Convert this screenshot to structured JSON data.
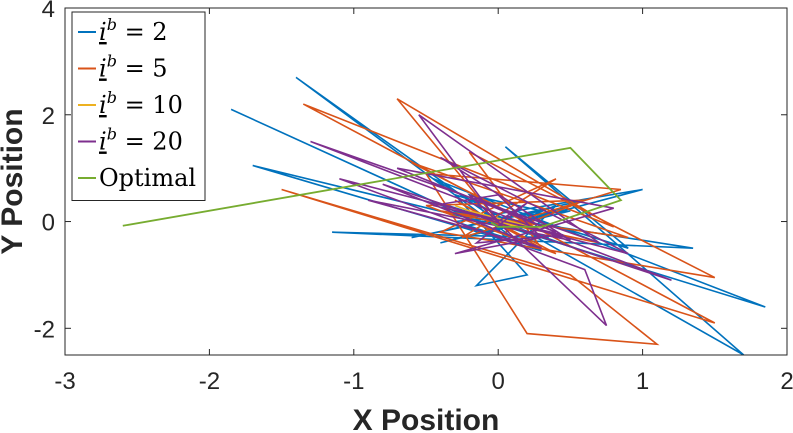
{
  "chart_data": {
    "type": "line",
    "title": "",
    "xlabel": "X Position",
    "ylabel": "Y Position",
    "xlim": [
      -3,
      2
    ],
    "ylim": [
      -2.5,
      4
    ],
    "xticks": [
      -3,
      -2,
      -1,
      0,
      1,
      2
    ],
    "yticks": [
      -2,
      0,
      2,
      4
    ],
    "xtick_labels": [
      "-3",
      "-2",
      "-1",
      "0",
      "1",
      "2"
    ],
    "ytick_labels": [
      "-2",
      "0",
      "2",
      "4"
    ],
    "grid": false,
    "legend_position": "top-left",
    "series": [
      {
        "name": "i^b = 2",
        "legend_base": "i",
        "legend_sup": "b",
        "legend_rest": " = 2",
        "color": "#0072BD",
        "x": [
          0,
          -1.4,
          0.1,
          -1.85,
          0.3,
          -1.7,
          0.35,
          -1.15,
          1.35,
          -0.3,
          1.85,
          -0.45,
          1.7,
          0.05,
          0.9,
          -0.3,
          0.2,
          -0.15,
          0.4,
          -0.05,
          0.6,
          -0.6,
          0.3,
          -0.2,
          0.05,
          -0.3,
          0.5,
          -0.4,
          1.0,
          -0.1,
          0.75,
          -0.35,
          0
        ],
        "y": [
          0,
          2.7,
          -0.3,
          2.1,
          -0.55,
          1.05,
          -0.3,
          -0.2,
          -0.5,
          0.2,
          -1.6,
          0.8,
          -2.5,
          1.4,
          -0.5,
          0.5,
          -1.0,
          -1.2,
          0.3,
          -0.2,
          0.4,
          -0.3,
          0.2,
          0.5,
          -0.3,
          0.0,
          0.2,
          -0.4,
          0.6,
          0.1,
          -0.7,
          0.3,
          0
        ]
      },
      {
        "name": "i^b = 5",
        "legend_base": "i",
        "legend_sup": "b",
        "legend_rest": " = 5",
        "color": "#D95319",
        "x": [
          0,
          -0.7,
          0.8,
          -1.35,
          1.5,
          -1.5,
          0.5,
          1.1,
          0.2,
          -0.5,
          0.85,
          -0.25,
          0.4,
          -0.4,
          1.5,
          -0.2,
          0.3,
          -0.3,
          0.4,
          -0.5,
          0.6,
          0.05,
          0.2,
          -0.6,
          0.9,
          -0.4,
          0.7,
          0
        ],
        "y": [
          0,
          2.3,
          -0.1,
          2.2,
          -1.9,
          0.6,
          -1.0,
          -2.3,
          -2.1,
          0.9,
          0.6,
          -0.3,
          0.8,
          -0.2,
          -1.05,
          1.3,
          -0.5,
          0.4,
          -0.6,
          0.3,
          0.4,
          -0.2,
          0.0,
          1.1,
          -0.3,
          0.2,
          -0.4,
          0
        ]
      },
      {
        "name": "i^b = 10",
        "legend_base": "i",
        "legend_sup": "b",
        "legend_rest": " = 10",
        "color": "#EDB120",
        "x": [
          0,
          -0.3,
          0.25,
          -0.2,
          0.3,
          -0.1,
          0.15,
          0
        ],
        "y": [
          0,
          0.3,
          -0.25,
          0.2,
          -0.15,
          0.1,
          -0.1,
          0
        ]
      },
      {
        "name": "i^b = 20",
        "legend_base": "i",
        "legend_sup": "b",
        "legend_rest": " = 20",
        "color": "#7E2F8E",
        "x": [
          0,
          -0.55,
          0.7,
          -1.3,
          1.2,
          -0.8,
          0.3,
          -0.9,
          0.5,
          -0.4,
          0.9,
          -1.1,
          0.6,
          0.75,
          -0.2,
          0.4,
          -0.7,
          0.8,
          -0.3,
          0.3,
          0,
          -0.45,
          0.45,
          -0.15,
          0.2,
          0
        ],
        "y": [
          0,
          2.0,
          -0.4,
          1.5,
          -1.1,
          0.7,
          -0.5,
          0.4,
          -0.35,
          1.2,
          -0.6,
          0.8,
          -0.9,
          -1.95,
          0.5,
          -0.2,
          1.0,
          0.25,
          -0.6,
          -0.3,
          0.5,
          0.3,
          -0.25,
          -0.4,
          0.35,
          0
        ]
      },
      {
        "name": "Optimal",
        "legend_text": "Optimal",
        "color": "#77AC30",
        "x": [
          -2.6,
          0.5,
          0.85,
          0.3,
          0.0,
          -0.05
        ],
        "y": [
          -0.08,
          1.38,
          0.4,
          -0.1,
          -0.1,
          -0.02
        ]
      }
    ]
  }
}
